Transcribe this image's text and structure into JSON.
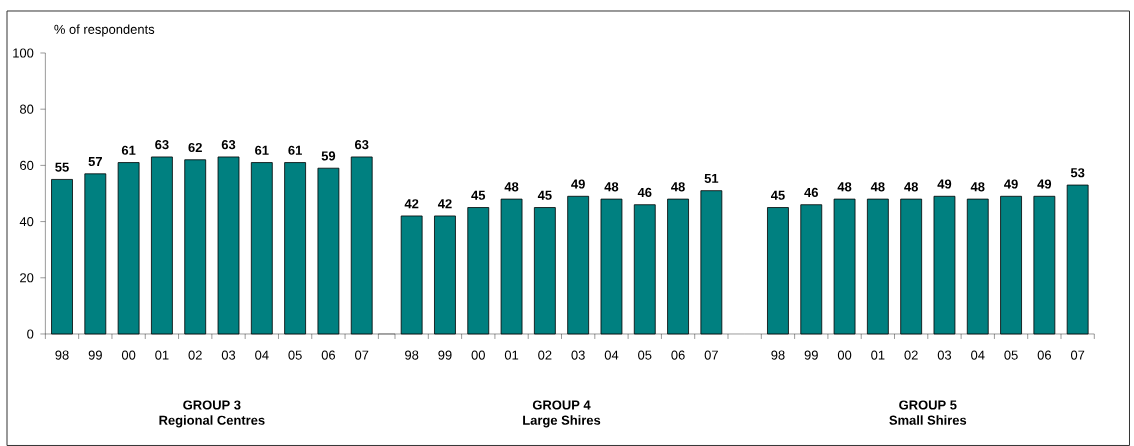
{
  "chart_data": [
    {
      "type": "bar",
      "ylabel": "% of respondents",
      "xlabel": "GROUP 3",
      "annotations": [
        "Regional Centres"
      ],
      "categories": [
        "98",
        "99",
        "00",
        "01",
        "02",
        "03",
        "04",
        "05",
        "06",
        "07"
      ],
      "values": [
        55,
        57,
        61,
        63,
        62,
        63,
        61,
        61,
        59,
        63
      ],
      "color": "#008080",
      "data_labels": true,
      "ylim": [
        0,
        100
      ],
      "yticks": [
        0,
        20,
        40,
        60,
        80,
        100
      ]
    },
    {
      "type": "bar",
      "xlabel": "GROUP 4",
      "annotations": [
        "Large Shires"
      ],
      "categories": [
        "98",
        "99",
        "00",
        "01",
        "02",
        "03",
        "04",
        "05",
        "06",
        "07"
      ],
      "values": [
        42,
        42,
        45,
        48,
        45,
        49,
        48,
        46,
        48,
        51
      ],
      "color": "#008080",
      "data_labels": true,
      "ylim": [
        0,
        100
      ],
      "tick_labels": "x"
    },
    {
      "type": "bar",
      "xlabel": "GROUP 5",
      "annotations": [
        "Small Shires"
      ],
      "categories": [
        "98",
        "99",
        "00",
        "01",
        "02",
        "03",
        "04",
        "05",
        "06",
        "07"
      ],
      "values": [
        45,
        46,
        48,
        48,
        48,
        49,
        48,
        49,
        49,
        53
      ],
      "color": "#008080",
      "data_labels": true,
      "ylim": [
        0,
        100
      ],
      "tick_labels": "x"
    }
  ]
}
